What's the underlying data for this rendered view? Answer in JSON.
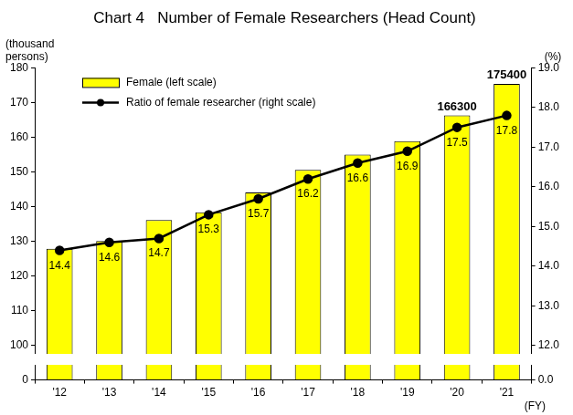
{
  "chart_data": {
    "type": "bar",
    "title": "Chart 4   Number of Female Researchers (Head Count)",
    "y_label": "(thousand\npersons)",
    "y2_label": "(%)",
    "x_label": "(FY)",
    "categories": [
      "'12",
      "'13",
      "'14",
      "'15",
      "'16",
      "'17",
      "'18",
      "'19",
      "'20",
      "'21"
    ],
    "series": [
      {
        "name": "Female (left scale)",
        "type": "bar",
        "color": "#ffff00",
        "values": [
          127.9,
          130.1,
          136.2,
          138.4,
          144.1,
          150.6,
          155.0,
          158.9,
          166.3,
          175.4
        ],
        "value_labels": [
          null,
          null,
          null,
          null,
          null,
          null,
          null,
          null,
          "166300",
          "175400"
        ]
      },
      {
        "name": "Ratio of female researcher (right scale)",
        "type": "line",
        "axis": "y2",
        "color": "#000000",
        "marker": "circle",
        "line_style": "solid",
        "values": [
          14.4,
          14.6,
          14.7,
          15.3,
          15.7,
          16.2,
          16.6,
          16.9,
          17.5,
          17.8
        ]
      }
    ],
    "ylim": [
      0,
      180
    ],
    "yticks": [
      0,
      100,
      110,
      120,
      130,
      140,
      150,
      160,
      170,
      180
    ],
    "y2lim": [
      0,
      19
    ],
    "y2ticks": [
      {
        "value": 0,
        "label": "0.0"
      },
      {
        "value": 12,
        "label": "12.0"
      },
      {
        "value": 13,
        "label": "13.0"
      },
      {
        "value": 14,
        "label": "14.0"
      },
      {
        "value": 15,
        "label": "15.0"
      },
      {
        "value": 16,
        "label": "16.0"
      },
      {
        "value": 17,
        "label": "17.0"
      },
      {
        "value": 18,
        "label": "18.0"
      },
      {
        "value": 19,
        "label": "19.0"
      }
    ],
    "grid": false,
    "legend": "top-left",
    "data_labels": true
  }
}
